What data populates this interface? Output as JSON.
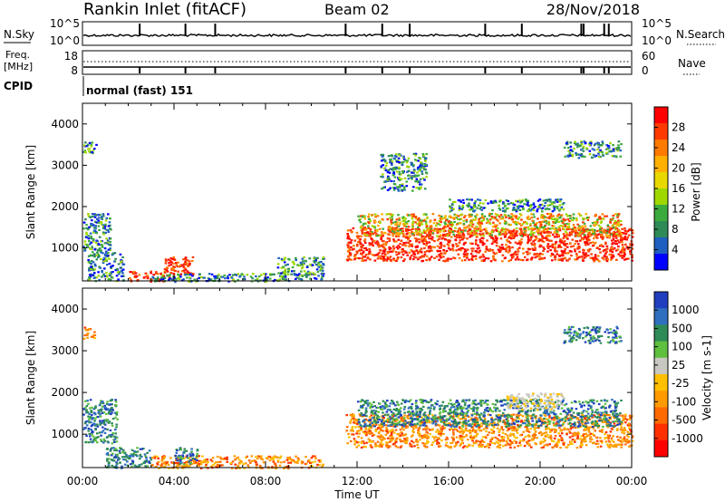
{
  "header": {
    "title": "Rankin Inlet (fitACF)",
    "beam": "Beam 02",
    "date": "28/Nov/2018"
  },
  "time_axis": {
    "label": "Time UT",
    "ticks": [
      "00:00",
      "04:00",
      "08:00",
      "12:00",
      "16:00",
      "20:00",
      "00:00"
    ]
  },
  "nsky_panel": {
    "label": "N.Sky",
    "right_label": "N.Search",
    "left_ticks": [
      "10^5",
      "10^0"
    ],
    "right_ticks": [
      "10^5",
      "10^0"
    ]
  },
  "freq_panel": {
    "label_line1": "Freq.",
    "label_line2": "[MHz]",
    "right_label": "Nave",
    "left_ticks": [
      "18",
      "8"
    ],
    "right_ticks": [
      "60",
      "0"
    ]
  },
  "cpid": {
    "label": "CPID",
    "text": "normal (fast) 151"
  },
  "spike_hours": [
    2.5,
    4.5,
    5.8,
    11.5,
    13.1,
    14.3,
    17.6,
    19.2,
    21.8,
    21.9,
    22.8,
    23.0
  ],
  "chart_data": [
    {
      "type": "heatmap",
      "name": "power",
      "ylabel": "Slant Range [km]",
      "xlabel": "",
      "xlim": [
        0,
        24
      ],
      "ylim": [
        200,
        4500
      ],
      "y_ticks": [
        1000,
        2000,
        3000,
        4000
      ],
      "colorbar": {
        "label": "Power [dB]",
        "ticks": [
          "28",
          "24",
          "20",
          "16",
          "12",
          "8",
          "4"
        ],
        "colors": [
          "#ff0000",
          "#ff3a00",
          "#ff7a00",
          "#ffb000",
          "#e8d800",
          "#9fd800",
          "#3caa3c",
          "#2e8b57",
          "#1f5fbf",
          "#0000ff"
        ]
      },
      "regions": [
        {
          "x": [
            0.0,
            1.2
          ],
          "y": [
            900,
            1850
          ],
          "level": "low"
        },
        {
          "x": [
            0.2,
            1.8
          ],
          "y": [
            200,
            900
          ],
          "level": "low"
        },
        {
          "x": [
            2.0,
            3.5
          ],
          "y": [
            200,
            450
          ],
          "level": "high"
        },
        {
          "x": [
            3.5,
            4.8
          ],
          "y": [
            300,
            800
          ],
          "level": "high"
        },
        {
          "x": [
            3.0,
            9.0
          ],
          "y": [
            200,
            400
          ],
          "level": "low"
        },
        {
          "x": [
            8.5,
            10.5
          ],
          "y": [
            250,
            800
          ],
          "level": "low"
        },
        {
          "x": [
            0.0,
            0.6
          ],
          "y": [
            3300,
            3600
          ],
          "level": "low"
        },
        {
          "x": [
            11.5,
            24.0
          ],
          "y": [
            700,
            1500
          ],
          "level": "high"
        },
        {
          "x": [
            12.0,
            23.5
          ],
          "y": [
            1300,
            1850
          ],
          "level": "mid"
        },
        {
          "x": [
            16.0,
            21.0
          ],
          "y": [
            1900,
            2200
          ],
          "level": "low"
        },
        {
          "x": [
            21.0,
            23.5
          ],
          "y": [
            3200,
            3600
          ],
          "level": "low"
        },
        {
          "x": [
            13.0,
            15.0
          ],
          "y": [
            2400,
            3300
          ],
          "level": "low"
        }
      ]
    },
    {
      "type": "heatmap",
      "name": "velocity",
      "ylabel": "Slant Range [km]",
      "xlabel": "Time UT",
      "xlim": [
        0,
        24
      ],
      "ylim": [
        200,
        4500
      ],
      "y_ticks": [
        1000,
        2000,
        3000,
        4000
      ],
      "colorbar": {
        "label": "Velocity [m s-1]",
        "ticks": [
          "1000",
          "500",
          "100",
          "25",
          "-25",
          "-100",
          "-500",
          "-1000"
        ],
        "colors": [
          "#1f3fbf",
          "#2f6fbf",
          "#2e8b57",
          "#5fbf3f",
          "#c8c8c0",
          "#ffc000",
          "#ff9a00",
          "#ff6a00",
          "#ff3000",
          "#ff0000"
        ]
      },
      "regions": [
        {
          "x": [
            0.0,
            1.5
          ],
          "y": [
            800,
            1850
          ],
          "level": "pos"
        },
        {
          "x": [
            1.0,
            3.0
          ],
          "y": [
            200,
            700
          ],
          "level": "pos"
        },
        {
          "x": [
            3.0,
            10.5
          ],
          "y": [
            200,
            500
          ],
          "level": "neg"
        },
        {
          "x": [
            4.0,
            5.0
          ],
          "y": [
            300,
            700
          ],
          "level": "pos"
        },
        {
          "x": [
            0.0,
            0.5
          ],
          "y": [
            3300,
            3600
          ],
          "level": "neg"
        },
        {
          "x": [
            11.5,
            24.0
          ],
          "y": [
            700,
            1500
          ],
          "level": "neg"
        },
        {
          "x": [
            12.0,
            23.5
          ],
          "y": [
            1200,
            1850
          ],
          "level": "pos"
        },
        {
          "x": [
            18.5,
            21.0
          ],
          "y": [
            1600,
            2000
          ],
          "level": "zero"
        },
        {
          "x": [
            21.0,
            23.5
          ],
          "y": [
            3200,
            3600
          ],
          "level": "pos"
        }
      ]
    }
  ]
}
